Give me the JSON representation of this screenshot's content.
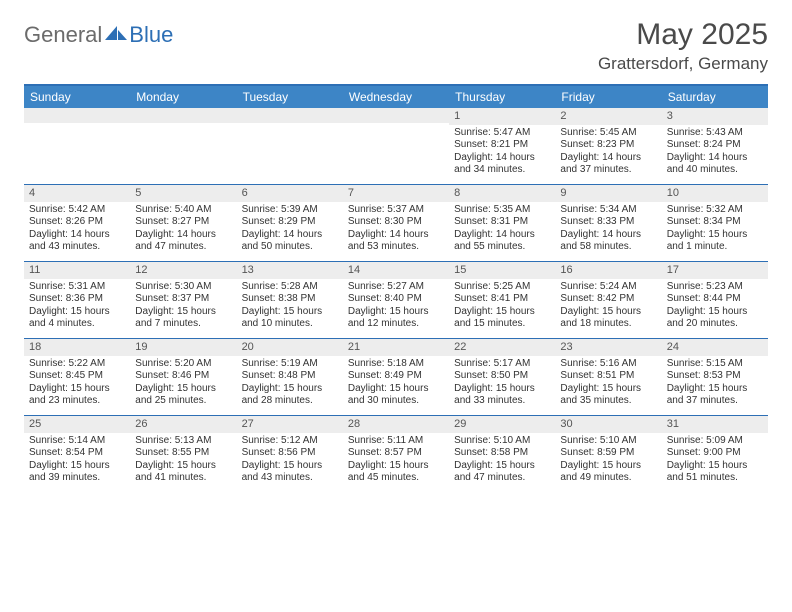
{
  "brand": {
    "part1": "General",
    "part2": "Blue"
  },
  "title": "May 2025",
  "location": "Grattersdorf, Germany",
  "colors": {
    "header_bg": "#3d85c6",
    "rule": "#2d6fb5",
    "daynum_bg": "#ededed",
    "text": "#333333",
    "logo_gray": "#6b6b6b",
    "logo_blue": "#2d6fb5"
  },
  "dow": [
    "Sunday",
    "Monday",
    "Tuesday",
    "Wednesday",
    "Thursday",
    "Friday",
    "Saturday"
  ],
  "weeks": [
    [
      null,
      null,
      null,
      null,
      {
        "n": "1",
        "sr": "5:47 AM",
        "ss": "8:21 PM",
        "dl": "14 hours and 34 minutes."
      },
      {
        "n": "2",
        "sr": "5:45 AM",
        "ss": "8:23 PM",
        "dl": "14 hours and 37 minutes."
      },
      {
        "n": "3",
        "sr": "5:43 AM",
        "ss": "8:24 PM",
        "dl": "14 hours and 40 minutes."
      }
    ],
    [
      {
        "n": "4",
        "sr": "5:42 AM",
        "ss": "8:26 PM",
        "dl": "14 hours and 43 minutes."
      },
      {
        "n": "5",
        "sr": "5:40 AM",
        "ss": "8:27 PM",
        "dl": "14 hours and 47 minutes."
      },
      {
        "n": "6",
        "sr": "5:39 AM",
        "ss": "8:29 PM",
        "dl": "14 hours and 50 minutes."
      },
      {
        "n": "7",
        "sr": "5:37 AM",
        "ss": "8:30 PM",
        "dl": "14 hours and 53 minutes."
      },
      {
        "n": "8",
        "sr": "5:35 AM",
        "ss": "8:31 PM",
        "dl": "14 hours and 55 minutes."
      },
      {
        "n": "9",
        "sr": "5:34 AM",
        "ss": "8:33 PM",
        "dl": "14 hours and 58 minutes."
      },
      {
        "n": "10",
        "sr": "5:32 AM",
        "ss": "8:34 PM",
        "dl": "15 hours and 1 minute."
      }
    ],
    [
      {
        "n": "11",
        "sr": "5:31 AM",
        "ss": "8:36 PM",
        "dl": "15 hours and 4 minutes."
      },
      {
        "n": "12",
        "sr": "5:30 AM",
        "ss": "8:37 PM",
        "dl": "15 hours and 7 minutes."
      },
      {
        "n": "13",
        "sr": "5:28 AM",
        "ss": "8:38 PM",
        "dl": "15 hours and 10 minutes."
      },
      {
        "n": "14",
        "sr": "5:27 AM",
        "ss": "8:40 PM",
        "dl": "15 hours and 12 minutes."
      },
      {
        "n": "15",
        "sr": "5:25 AM",
        "ss": "8:41 PM",
        "dl": "15 hours and 15 minutes."
      },
      {
        "n": "16",
        "sr": "5:24 AM",
        "ss": "8:42 PM",
        "dl": "15 hours and 18 minutes."
      },
      {
        "n": "17",
        "sr": "5:23 AM",
        "ss": "8:44 PM",
        "dl": "15 hours and 20 minutes."
      }
    ],
    [
      {
        "n": "18",
        "sr": "5:22 AM",
        "ss": "8:45 PM",
        "dl": "15 hours and 23 minutes."
      },
      {
        "n": "19",
        "sr": "5:20 AM",
        "ss": "8:46 PM",
        "dl": "15 hours and 25 minutes."
      },
      {
        "n": "20",
        "sr": "5:19 AM",
        "ss": "8:48 PM",
        "dl": "15 hours and 28 minutes."
      },
      {
        "n": "21",
        "sr": "5:18 AM",
        "ss": "8:49 PM",
        "dl": "15 hours and 30 minutes."
      },
      {
        "n": "22",
        "sr": "5:17 AM",
        "ss": "8:50 PM",
        "dl": "15 hours and 33 minutes."
      },
      {
        "n": "23",
        "sr": "5:16 AM",
        "ss": "8:51 PM",
        "dl": "15 hours and 35 minutes."
      },
      {
        "n": "24",
        "sr": "5:15 AM",
        "ss": "8:53 PM",
        "dl": "15 hours and 37 minutes."
      }
    ],
    [
      {
        "n": "25",
        "sr": "5:14 AM",
        "ss": "8:54 PM",
        "dl": "15 hours and 39 minutes."
      },
      {
        "n": "26",
        "sr": "5:13 AM",
        "ss": "8:55 PM",
        "dl": "15 hours and 41 minutes."
      },
      {
        "n": "27",
        "sr": "5:12 AM",
        "ss": "8:56 PM",
        "dl": "15 hours and 43 minutes."
      },
      {
        "n": "28",
        "sr": "5:11 AM",
        "ss": "8:57 PM",
        "dl": "15 hours and 45 minutes."
      },
      {
        "n": "29",
        "sr": "5:10 AM",
        "ss": "8:58 PM",
        "dl": "15 hours and 47 minutes."
      },
      {
        "n": "30",
        "sr": "5:10 AM",
        "ss": "8:59 PM",
        "dl": "15 hours and 49 minutes."
      },
      {
        "n": "31",
        "sr": "5:09 AM",
        "ss": "9:00 PM",
        "dl": "15 hours and 51 minutes."
      }
    ]
  ],
  "labels": {
    "sunrise": "Sunrise: ",
    "sunset": "Sunset: ",
    "daylight": "Daylight: "
  }
}
